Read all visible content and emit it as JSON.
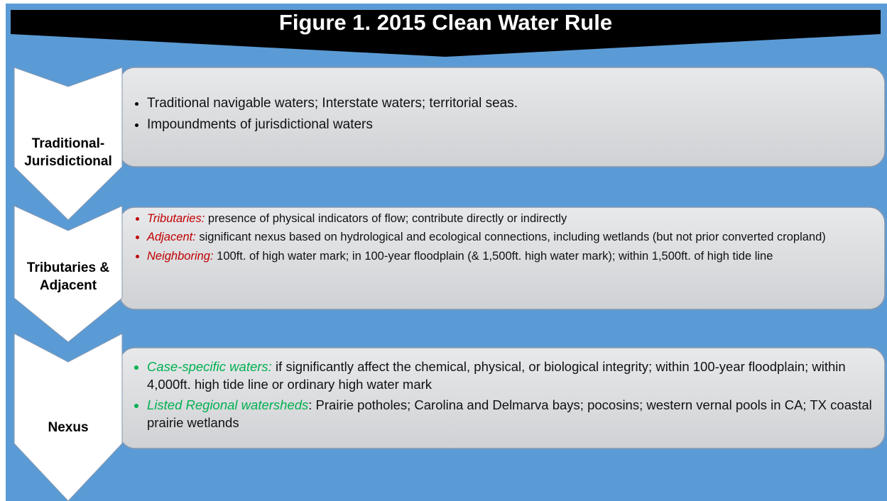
{
  "title": "Figure 1. 2015 Clean Water Rule",
  "rows": [
    {
      "label": "Traditional-Jurisdictional",
      "term_color": "#000000",
      "bullets": [
        {
          "text": "Traditional navigable waters; Interstate waters; territorial seas."
        },
        {
          "text": "Impoundments of jurisdictional waters"
        }
      ]
    },
    {
      "label": "Tributaries & Adjacent",
      "term_color": "#c00000",
      "bullets": [
        {
          "term": "Tributaries:",
          "text": " presence of physical indicators of flow; contribute directly or indirectly"
        },
        {
          "term": "Adjacent:",
          "text": " significant nexus based on hydrological and ecological connections, including wetlands (but not prior converted cropland)"
        },
        {
          "term": "Neighboring:",
          "text": " 100ft. of high water mark; in 100-year floodplain (& 1,500ft. high water mark); within 1,500ft. of high tide line"
        }
      ]
    },
    {
      "label": "Nexus",
      "term_color": "#00b050",
      "bullets": [
        {
          "term": "Case-specific waters:",
          "text": " if significantly affect the chemical, physical, or biological integrity; within 100-year floodplain; within 4,000ft. high tide line or ordinary high water mark"
        },
        {
          "term": "Listed Regional watersheds",
          "text": ": Prairie potholes; Carolina and Delmarva bays; pocosins; western vernal pools in CA; TX coastal prairie wetlands"
        }
      ]
    }
  ]
}
